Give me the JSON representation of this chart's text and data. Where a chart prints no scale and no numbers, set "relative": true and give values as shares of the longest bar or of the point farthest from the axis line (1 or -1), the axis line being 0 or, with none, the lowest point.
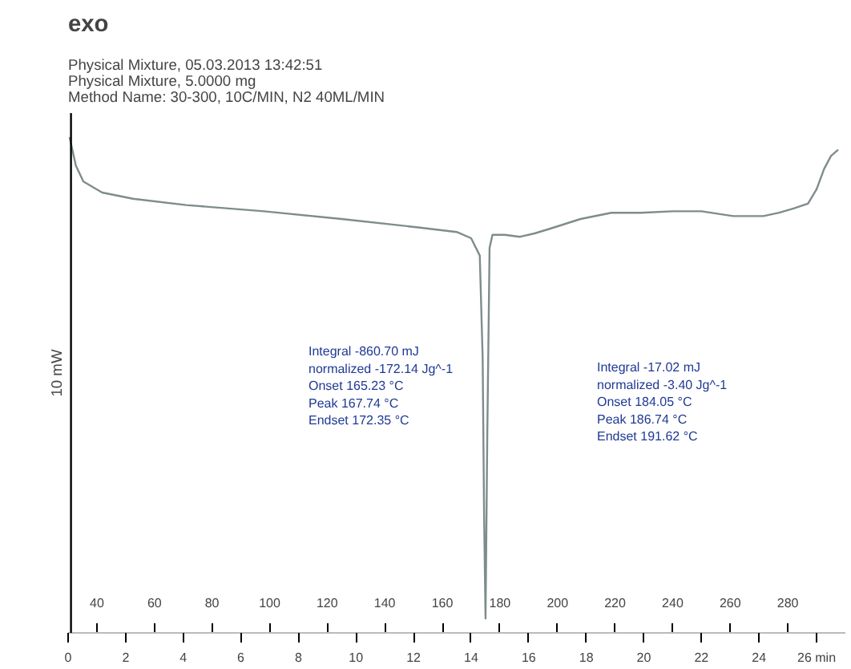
{
  "chart_data": {
    "type": "line",
    "title": "exo",
    "subtitle": "Physical Mixture, 05.03.2013 13:42:51\nPhysical Mixture, 5.0000 mg\nMethod Name: 30-300, 10C/MIN, N2 40ML/MIN",
    "ylabel": "10 mW",
    "relative": true,
    "x": [
      30.5,
      32.7,
      35.3,
      41.8,
      52.5,
      71,
      98,
      125,
      151,
      165,
      170,
      173,
      174,
      174.5,
      175,
      175.6,
      176.4,
      177.4,
      181.7,
      187,
      192,
      197.5,
      208,
      218.7,
      229,
      240,
      250,
      261,
      271.5,
      277,
      282,
      287,
      290,
      292.6,
      295,
      297.5
    ],
    "series": [
      {
        "color": "#7f8c8d",
        "values": [
          1,
          0.941,
          0.908,
          0.885,
          0.872,
          0.859,
          0.846,
          0.83,
          0.813,
          0.803,
          0.79,
          0.754,
          0.541,
          0.213,
          0,
          0.377,
          0.77,
          0.797,
          0.797,
          0.793,
          0.8,
          0.81,
          0.83,
          0.843,
          0.843,
          0.846,
          0.846,
          0.836,
          0.836,
          0.843,
          0.852,
          0.862,
          0.892,
          0.934,
          0.961,
          0.974
        ]
      }
    ],
    "xlim": [
      30,
      300
    ],
    "xticks": [
      40,
      60,
      80,
      100,
      120,
      140,
      160,
      180,
      200,
      220,
      240,
      260,
      280
    ],
    "x2lim": [
      0,
      27
    ],
    "x2ticks": [
      0,
      2,
      4,
      6,
      8,
      10,
      12,
      14,
      16,
      18,
      20,
      22,
      24,
      {
        "value": 26,
        "label": "26 min"
      }
    ],
    "annotations": [
      "Integral  -860.70 mJ\n  normalized  -172.14 Jg^-1\nOnset  165.23 °C\nPeak  167.74 °C\nEndset  172.35 °C",
      "Integral  -17.02 mJ\n  normalized  -3.40 Jg^-1\nOnset  184.05 °C\nPeak  186.74 °C\nEndset  191.62 °C"
    ],
    "grid": false
  }
}
